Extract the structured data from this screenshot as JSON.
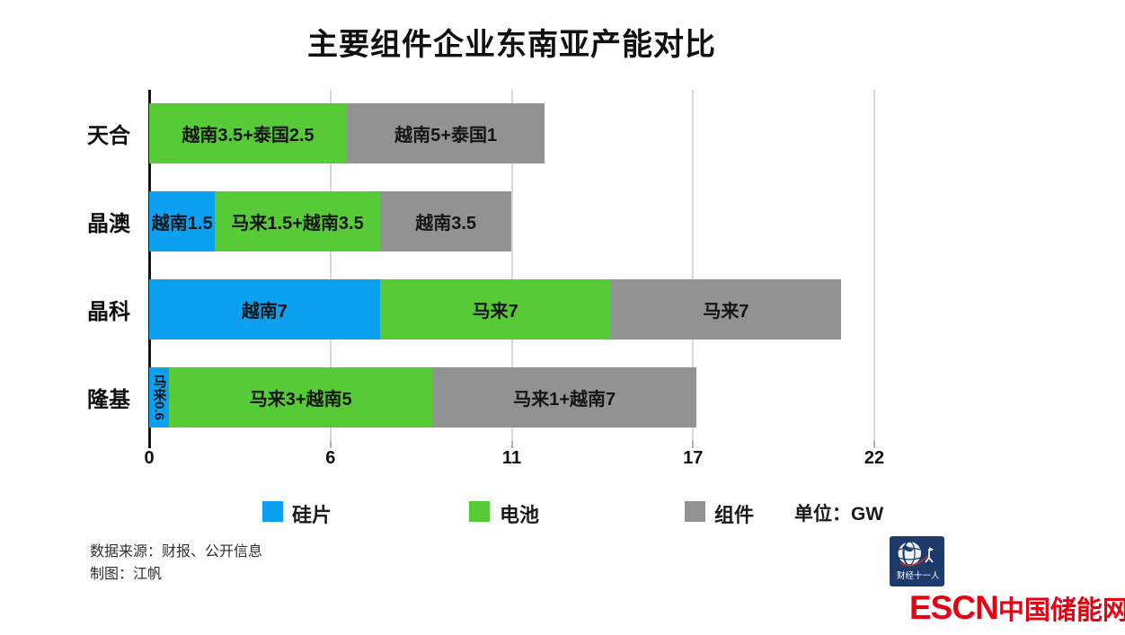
{
  "title": "主要组件企业东南亚产能对比",
  "unit_label": "单位：GW",
  "colors": {
    "wafer": "#0ba1f0",
    "cell": "#57cb37",
    "module": "#929292",
    "grid": "#d8d8d8",
    "axis": "#141414",
    "brand_red": "#e60012",
    "logo_navy": "#1e3a6a"
  },
  "x_axis": {
    "max_gw": 22,
    "ticks": [
      "0",
      "6",
      "11",
      "17",
      "22"
    ]
  },
  "legend": [
    {
      "name": "硅片",
      "color": "#0ba1f0"
    },
    {
      "name": "电池",
      "color": "#57cb37"
    },
    {
      "name": "组件",
      "color": "#929292"
    }
  ],
  "companies": [
    {
      "name": "天合",
      "segments": [
        {
          "series": "电池",
          "color": "cell",
          "label": "越南3.5+泰国2.5",
          "value": 6,
          "render_gw": 6
        },
        {
          "series": "组件",
          "color": "module",
          "label": "越南5+泰国1",
          "value": 6,
          "render_gw": 6
        }
      ]
    },
    {
      "name": "晶澳",
      "segments": [
        {
          "series": "硅片",
          "color": "wafer",
          "label": "越南1.5",
          "value": 1.5,
          "render_gw": 2
        },
        {
          "series": "电池",
          "color": "cell",
          "label": "马来1.5+越南3.5",
          "value": 5,
          "render_gw": 5
        },
        {
          "series": "组件",
          "color": "module",
          "label": "越南3.5",
          "value": 3.5,
          "render_gw": 4
        }
      ]
    },
    {
      "name": "晶科",
      "segments": [
        {
          "series": "硅片",
          "color": "wafer",
          "label": "越南7",
          "value": 7,
          "render_gw": 7
        },
        {
          "series": "电池",
          "color": "cell",
          "label": "马来7",
          "value": 7,
          "render_gw": 7
        },
        {
          "series": "组件",
          "color": "module",
          "label": "马来7",
          "value": 7,
          "render_gw": 7
        }
      ]
    },
    {
      "name": "隆基",
      "segments": [
        {
          "series": "硅片",
          "color": "wafer",
          "label": "马来0.6",
          "value": 0.6,
          "render_gw": 0.6,
          "vertical": true
        },
        {
          "series": "电池",
          "color": "cell",
          "label": "马来3+越南5",
          "value": 8,
          "render_gw": 8
        },
        {
          "series": "组件",
          "color": "module",
          "label": "马来1+越南7",
          "value": 8,
          "render_gw": 8
        }
      ]
    }
  ],
  "source": {
    "line1": "数据来源：财报、公开信息",
    "line2": "制图：江帆"
  },
  "logo": {
    "caption": "财经十一人"
  },
  "brand": {
    "latin": "ESCN",
    "cn": "中国储能网"
  },
  "chart_data": {
    "type": "bar",
    "orientation": "horizontal",
    "stacked": true,
    "title": "主要组件企业东南亚产能对比",
    "unit": "GW",
    "categories": [
      "天合",
      "晶澳",
      "晶科",
      "隆基"
    ],
    "series": [
      {
        "name": "硅片",
        "values": [
          0,
          1.5,
          7,
          0.6
        ],
        "segment_labels": [
          "",
          "越南1.5",
          "越南7",
          "马来0.6"
        ]
      },
      {
        "name": "电池",
        "values": [
          6,
          5,
          7,
          8
        ],
        "segment_labels": [
          "越南3.5+泰国2.5",
          "马来1.5+越南3.5",
          "马来7",
          "马来3+越南5"
        ]
      },
      {
        "name": "组件",
        "values": [
          6,
          3.5,
          7,
          8
        ],
        "segment_labels": [
          "越南5+泰国1",
          "越南3.5",
          "马来7",
          "马来1+越南7"
        ]
      }
    ],
    "totals": [
      12,
      10,
      21,
      16.6
    ],
    "xlim": [
      0,
      22
    ],
    "x_tick_labels": [
      "0",
      "6",
      "11",
      "17",
      "22"
    ],
    "grid": true,
    "legend_position": "bottom",
    "source": "数据来源：财报、公开信息",
    "credit": "制图：江帆"
  }
}
